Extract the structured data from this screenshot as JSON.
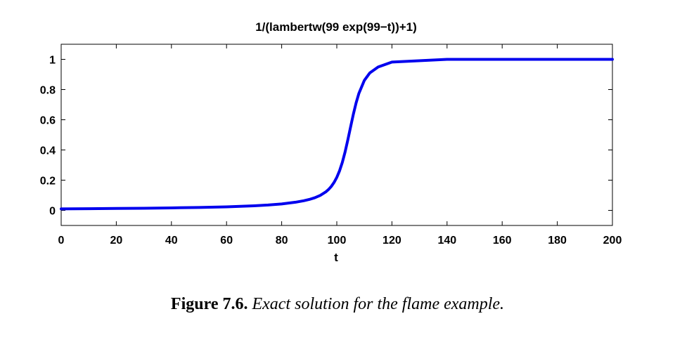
{
  "chart_data": {
    "type": "line",
    "title": "1/(lambertw(99 exp(99−t))+1)",
    "xlabel": "t",
    "ylabel": "",
    "xlim": [
      0,
      200
    ],
    "ylim": [
      -0.1,
      1.1
    ],
    "xticks": [
      "0",
      "20",
      "40",
      "60",
      "80",
      "100",
      "120",
      "140",
      "160",
      "180",
      "200"
    ],
    "yticks": [
      "0",
      "0.2",
      "0.4",
      "0.6",
      "0.8",
      "1"
    ],
    "grid": false,
    "legend": "none",
    "series": [
      {
        "color": "#0000ee",
        "x": [
          0,
          10,
          20,
          30,
          40,
          50,
          60,
          70,
          75,
          80,
          85,
          88,
          90,
          92,
          94,
          96,
          97,
          98,
          99,
          100,
          101,
          102,
          103,
          104,
          105,
          106,
          107,
          108,
          110,
          112,
          115,
          120,
          140,
          160,
          180,
          200
        ],
        "y": [
          0.0101,
          0.0112,
          0.0125,
          0.0142,
          0.0164,
          0.0193,
          0.0235,
          0.0301,
          0.0352,
          0.0425,
          0.0539,
          0.0637,
          0.0722,
          0.0836,
          0.0993,
          0.1222,
          0.1382,
          0.1585,
          0.1847,
          0.2184,
          0.262,
          0.3176,
          0.3863,
          0.4665,
          0.5522,
          0.636,
          0.7114,
          0.7738,
          0.861,
          0.9106,
          0.9493,
          0.9822,
          0.99995,
          1.0,
          1.0,
          1.0
        ]
      }
    ]
  },
  "caption": {
    "label": "Figure 7.6.",
    "text": "Exact solution for the flame example."
  }
}
